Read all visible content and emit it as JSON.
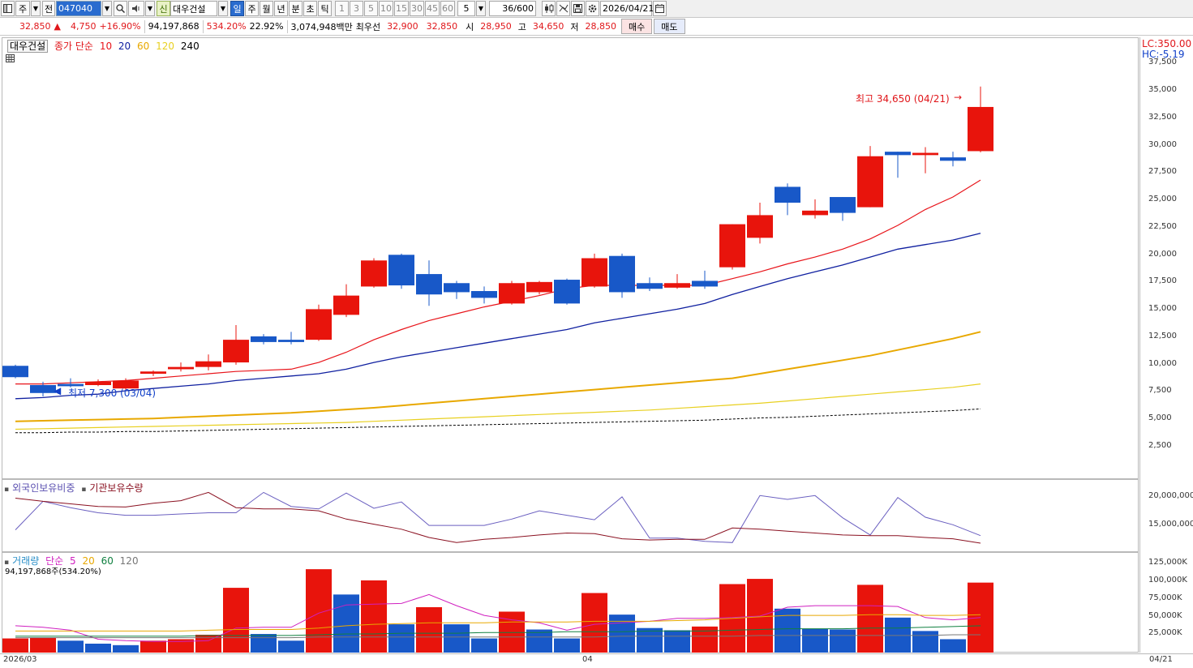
{
  "toolbar": {
    "market_mode": "주",
    "prev_label": "전",
    "stock_code": "047040",
    "shin_label": "신",
    "stock_name": "대우건설",
    "periods": [
      "일",
      "주",
      "월",
      "년",
      "분",
      "초",
      "틱"
    ],
    "active_period": "일",
    "intervals": [
      "1",
      "3",
      "5",
      "10",
      "15",
      "30",
      "45",
      "60"
    ],
    "interval_value": "5",
    "count_value": "36",
    "count_max": "/600",
    "date": "2026/04/21"
  },
  "quote": {
    "price": "32,850",
    "arrow": "▲",
    "change": "4,750",
    "change_pct": "+16.90%",
    "volume": "94,197,868",
    "volume_ratio": "534.20%",
    "turnover": "22.92%",
    "amount": "3,074,948백만",
    "best_ask_label": "최우선",
    "best_ask": "32,900",
    "best_bid": "32,850",
    "open_label": "시",
    "open": "28,950",
    "high_label": "고",
    "high": "34,650",
    "low_label": "저",
    "low": "28,850",
    "buy_label": "매수",
    "sell_label": "매도"
  },
  "price_panel": {
    "stock_label": "대우건설",
    "ma_title": "종가 단순",
    "ma_periods": [
      "10",
      "20",
      "60",
      "120",
      "240"
    ],
    "lc_label": "LC:350.00",
    "hc_label": "HC:-5.19",
    "high_annotation": "최고 34,650 (04/21)",
    "low_annotation": "최저 7,300 (03/04)",
    "y_ticks": [
      "37,500",
      "35,000",
      "32,500",
      "30,000",
      "27,500",
      "25,000",
      "22,500",
      "20,000",
      "17,500",
      "15,000",
      "12,500",
      "10,000",
      "7,500",
      "5,000",
      "2,500"
    ]
  },
  "holding_panel": {
    "foreign_label": "외국인보유비중",
    "institution_label": "기관보유수량",
    "y_ticks": [
      "20,000,000",
      "15,000,000"
    ]
  },
  "volume_panel": {
    "title": "거래량",
    "ma_title": "단순",
    "ma_periods": [
      "5",
      "20",
      "60",
      "120"
    ],
    "current_volume": "94,197,868주(534.20%)",
    "y_ticks": [
      "125,000K",
      "100,000K",
      "75,000K",
      "50,000K",
      "25,000K"
    ]
  },
  "x_axis": {
    "labels": [
      "2026/03",
      "04"
    ],
    "last_label": "04/21"
  },
  "colors": {
    "up": "#e8140c",
    "down": "#1858c8",
    "ma10": "#e8141a",
    "ma20": "#1020a0",
    "ma60": "#e8a800",
    "ma120": "#e8d020",
    "ma240": "#000000"
  },
  "chart_data": [
    {
      "type": "candlestick",
      "ylim": [
        0,
        39000
      ],
      "candles": [
        {
          "o": 10000,
          "h": 10100,
          "l": 8900,
          "c": 9000
        },
        {
          "o": 8300,
          "h": 8600,
          "l": 7300,
          "c": 7600
        },
        {
          "o": 8400,
          "h": 8900,
          "l": 8100,
          "c": 8200
        },
        {
          "o": 8300,
          "h": 8800,
          "l": 8200,
          "c": 8600
        },
        {
          "o": 8000,
          "h": 8900,
          "l": 7900,
          "c": 8700
        },
        {
          "o": 9300,
          "h": 9600,
          "l": 9100,
          "c": 9500
        },
        {
          "o": 9700,
          "h": 10300,
          "l": 9500,
          "c": 9900
        },
        {
          "o": 9900,
          "h": 11000,
          "l": 9600,
          "c": 10400
        },
        {
          "o": 10300,
          "h": 13600,
          "l": 10100,
          "c": 12300
        },
        {
          "o": 12600,
          "h": 12800,
          "l": 11900,
          "c": 12100
        },
        {
          "o": 12300,
          "h": 13000,
          "l": 11900,
          "c": 12100
        },
        {
          "o": 12300,
          "h": 15400,
          "l": 12200,
          "c": 15000
        },
        {
          "o": 14500,
          "h": 17200,
          "l": 14300,
          "c": 16200
        },
        {
          "o": 17000,
          "h": 19500,
          "l": 16900,
          "c": 19300
        },
        {
          "o": 19800,
          "h": 19900,
          "l": 16800,
          "c": 17100
        },
        {
          "o": 18100,
          "h": 19300,
          "l": 15300,
          "c": 16300
        },
        {
          "o": 17300,
          "h": 17500,
          "l": 15900,
          "c": 16500
        },
        {
          "o": 16600,
          "h": 17000,
          "l": 15500,
          "c": 16000
        },
        {
          "o": 15500,
          "h": 17500,
          "l": 15400,
          "c": 17300
        },
        {
          "o": 16500,
          "h": 17500,
          "l": 16300,
          "c": 17400
        },
        {
          "o": 17600,
          "h": 17700,
          "l": 15400,
          "c": 15500
        },
        {
          "o": 17000,
          "h": 19900,
          "l": 16900,
          "c": 19500
        },
        {
          "o": 19700,
          "h": 19900,
          "l": 16000,
          "c": 16500
        },
        {
          "o": 17300,
          "h": 17800,
          "l": 16600,
          "c": 16800
        },
        {
          "o": 16900,
          "h": 18100,
          "l": 16800,
          "c": 17300
        },
        {
          "o": 17500,
          "h": 18400,
          "l": 16800,
          "c": 17000
        },
        {
          "o": 18700,
          "h": 22500,
          "l": 18500,
          "c": 22500
        },
        {
          "o": 21300,
          "h": 24400,
          "l": 20800,
          "c": 23300
        },
        {
          "o": 25800,
          "h": 26100,
          "l": 23300,
          "c": 24400
        },
        {
          "o": 23300,
          "h": 24700,
          "l": 23000,
          "c": 23700
        },
        {
          "o": 24900,
          "h": 24900,
          "l": 22800,
          "c": 23500
        },
        {
          "o": 24000,
          "h": 29400,
          "l": 24000,
          "c": 28500
        },
        {
          "o": 28900,
          "h": 28900,
          "l": 26600,
          "c": 28600
        },
        {
          "o": 28600,
          "h": 29300,
          "l": 27000,
          "c": 28800
        },
        {
          "o": 28400,
          "h": 28900,
          "l": 27600,
          "c": 28100
        },
        {
          "o": 28950,
          "h": 34650,
          "l": 28850,
          "c": 32850
        }
      ],
      "ma": {
        "ma10": [
          8400,
          8400,
          8500,
          8600,
          8700,
          8900,
          9100,
          9300,
          9500,
          9600,
          9700,
          10300,
          11200,
          12300,
          13200,
          14000,
          14600,
          15200,
          15700,
          16200,
          16800,
          17100,
          17100,
          17100,
          17100,
          17100,
          17700,
          18300,
          19000,
          19600,
          20300,
          21200,
          22400,
          23800,
          24900,
          26400
        ],
        "ma20": [
          7100,
          7200,
          7400,
          7500,
          7800,
          8000,
          8200,
          8400,
          8700,
          8900,
          9100,
          9300,
          9700,
          10300,
          10800,
          11200,
          11600,
          12000,
          12400,
          12800,
          13200,
          13800,
          14200,
          14600,
          15000,
          15500,
          16300,
          17000,
          17700,
          18300,
          18900,
          19600,
          20300,
          20700,
          21100,
          21700
        ],
        "ma60": [
          5100,
          5150,
          5200,
          5250,
          5300,
          5350,
          5450,
          5550,
          5650,
          5750,
          5850,
          6000,
          6150,
          6300,
          6500,
          6700,
          6900,
          7100,
          7300,
          7500,
          7700,
          7900,
          8100,
          8300,
          8500,
          8700,
          8900,
          9300,
          9700,
          10100,
          10500,
          10900,
          11400,
          11900,
          12400,
          13000
        ],
        "ma120": [
          4400,
          4450,
          4500,
          4550,
          4600,
          4650,
          4700,
          4750,
          4800,
          4850,
          4900,
          4950,
          5000,
          5100,
          5200,
          5300,
          5400,
          5500,
          5600,
          5700,
          5800,
          5900,
          6000,
          6100,
          6250,
          6400,
          6550,
          6700,
          6900,
          7100,
          7300,
          7500,
          7700,
          7900,
          8100,
          8400
        ],
        "ma240": [
          4100,
          4100,
          4150,
          4150,
          4200,
          4200,
          4250,
          4300,
          4350,
          4400,
          4450,
          4500,
          4550,
          4600,
          4650,
          4700,
          4750,
          4800,
          4850,
          4900,
          4950,
          5000,
          5050,
          5100,
          5150,
          5200,
          5300,
          5400,
          5450,
          5550,
          5650,
          5750,
          5850,
          5950,
          6050,
          6200
        ]
      }
    },
    {
      "type": "line",
      "ylim": [
        11000,
        22500
      ],
      "series": [
        {
          "name": "외국인보유비중",
          "values": [
            14500,
            19000,
            18000,
            17200,
            16800,
            16800,
            17000,
            17200,
            17200,
            20400,
            18200,
            17800,
            20300,
            17900,
            18900,
            15200,
            15200,
            15200,
            16200,
            17500,
            16800,
            16100,
            19700,
            13200,
            13200,
            12700,
            12500,
            19900,
            19300,
            19900,
            16400,
            13700,
            19600,
            16500,
            15300,
            13600
          ]
        },
        {
          "name": "기관보유수량",
          "values": [
            19500,
            19000,
            18600,
            18200,
            18100,
            18700,
            19100,
            20400,
            18000,
            17800,
            17800,
            17500,
            16200,
            15400,
            14600,
            13300,
            12500,
            13000,
            13300,
            13700,
            14000,
            13900,
            13100,
            12900,
            13000,
            13000,
            14800,
            14600,
            14300,
            14000,
            13700,
            13600,
            13600,
            13300,
            13100,
            12400
          ]
        }
      ]
    },
    {
      "type": "bar",
      "ylim": [
        0,
        135000
      ],
      "values": [
        19000,
        20000,
        16000,
        12000,
        10000,
        16000,
        18000,
        24000,
        87000,
        25000,
        16000,
        112000,
        78000,
        97000,
        38000,
        61000,
        38000,
        19000,
        55000,
        31000,
        19000,
        80000,
        51000,
        33000,
        30000,
        35000,
        92000,
        99000,
        59000,
        32000,
        31000,
        91000,
        47000,
        29000,
        18000,
        94000
      ],
      "up": [
        true,
        true,
        false,
        false,
        false,
        true,
        true,
        true,
        true,
        false,
        false,
        true,
        false,
        true,
        false,
        true,
        false,
        false,
        true,
        false,
        false,
        true,
        false,
        false,
        false,
        true,
        true,
        true,
        false,
        false,
        false,
        true,
        false,
        false,
        false,
        true
      ],
      "series": [
        {
          "name": "5",
          "values": [
            36000,
            34000,
            30000,
            18000,
            16000,
            15000,
            15000,
            16000,
            33000,
            34000,
            34000,
            53000,
            64000,
            65000,
            66000,
            78000,
            63000,
            50000,
            44000,
            40000,
            30000,
            38000,
            40000,
            42000,
            46000,
            46000,
            47000,
            49000,
            61000,
            63000,
            63000,
            63000,
            62000,
            47000,
            44000,
            47000
          ]
        },
        {
          "name": "20",
          "values": [
            29000,
            29000,
            29000,
            29000,
            29000,
            29000,
            29000,
            30000,
            31000,
            31000,
            31000,
            33000,
            36000,
            38000,
            39000,
            40000,
            40000,
            40000,
            41000,
            41000,
            41000,
            42000,
            42000,
            42000,
            43000,
            44000,
            46000,
            48000,
            50000,
            50000,
            50000,
            51000,
            51000,
            50000,
            50000,
            51000
          ]
        },
        {
          "name": "60",
          "values": [
            22000,
            22000,
            22000,
            22000,
            22000,
            22000,
            22000,
            23000,
            23000,
            23000,
            23000,
            24000,
            25000,
            25000,
            26000,
            26000,
            26000,
            27000,
            27000,
            27000,
            28000,
            28000,
            28000,
            29000,
            29000,
            29000,
            30000,
            31000,
            32000,
            32000,
            32000,
            33000,
            33000,
            34000,
            35000,
            36000
          ]
        },
        {
          "name": "120",
          "values": [
            20000,
            20000,
            20000,
            20000,
            20000,
            20000,
            20000,
            20000,
            20000,
            20000,
            20000,
            21000,
            21000,
            21000,
            21000,
            21000,
            21000,
            21000,
            21000,
            21000,
            21000,
            21000,
            22000,
            22000,
            22000,
            22000,
            22000,
            23000,
            23000,
            23000,
            23000,
            23000,
            23000,
            23000,
            24000,
            24000
          ]
        }
      ]
    }
  ]
}
